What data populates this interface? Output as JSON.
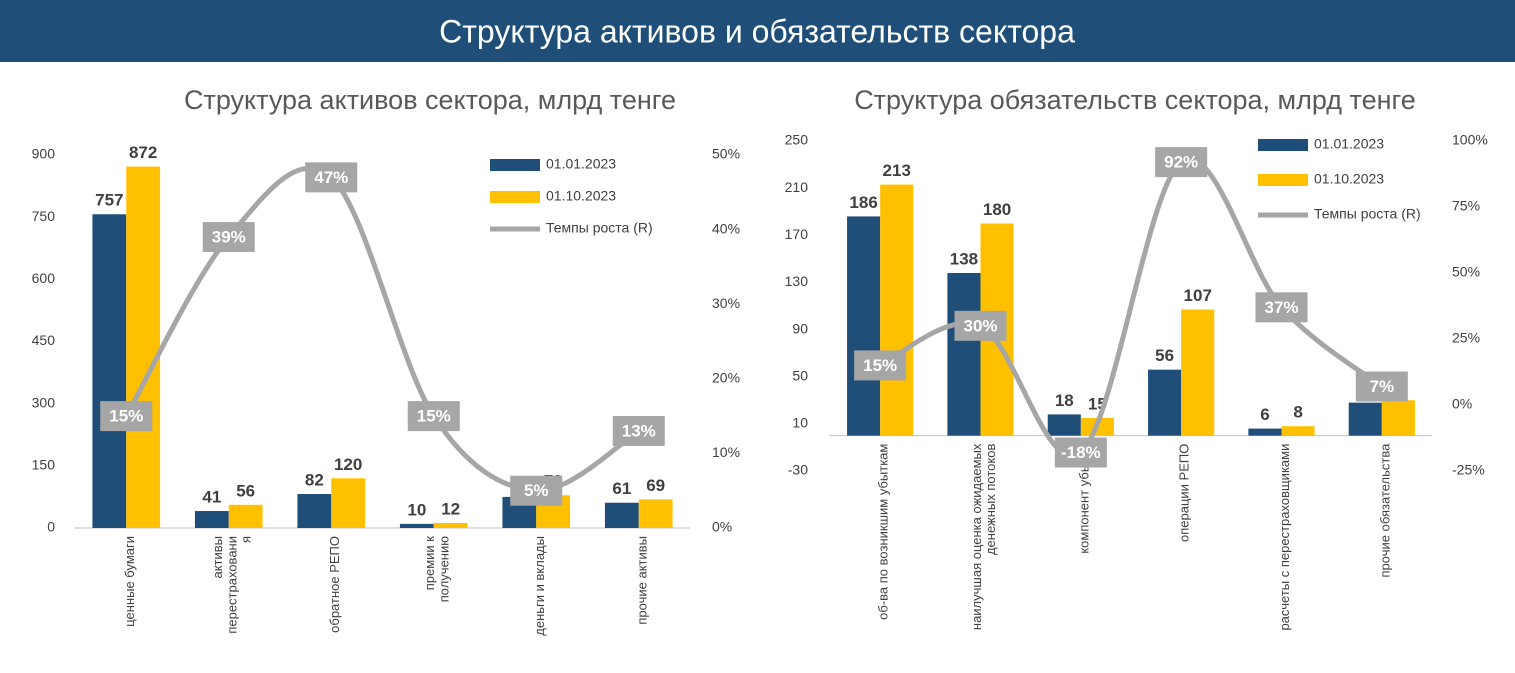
{
  "header": {
    "title": "Структура активов и обязательств сектора"
  },
  "chart_data": [
    {
      "type": "bar",
      "title": "Структура активов сектора, млрд тенге",
      "categories": [
        "ценные бумаги",
        "активы\nперестраховани\nя",
        "обратное РЕПО",
        "премии к\nполучению",
        "деньги и вклады",
        "прочие активы"
      ],
      "series": [
        {
          "name": "01.01.2023",
          "color": "#1f4e79",
          "values": [
            757,
            41,
            82,
            10,
            75,
            61
          ]
        },
        {
          "name": "01.10.2023",
          "color": "#ffc000",
          "values": [
            872,
            56,
            120,
            12,
            79,
            69
          ]
        },
        {
          "name": "Темпы роста (R)",
          "type": "line",
          "axis": "y2",
          "color": "#a6a6a6",
          "values": [
            15,
            39,
            47,
            15,
            5,
            13
          ],
          "value_labels": [
            "15%",
            "39%",
            "47%",
            "15%",
            "5%",
            "13%"
          ]
        }
      ],
      "ylim": [
        0,
        900
      ],
      "yticks": [
        0,
        150,
        300,
        450,
        600,
        750,
        900
      ],
      "y2lim": [
        0,
        50
      ],
      "y2ticks": [
        {
          "value": 0,
          "label": "0%"
        },
        {
          "value": 10,
          "label": "10%"
        },
        {
          "value": 20,
          "label": "20%"
        },
        {
          "value": 30,
          "label": "30%"
        },
        {
          "value": 40,
          "label": "40%"
        },
        {
          "value": 50,
          "label": "50%"
        }
      ],
      "legend": "upper right"
    },
    {
      "type": "bar",
      "title": "Структура обязательств сектора, млрд тенге",
      "categories": [
        "об-ва по возникшим убыткам",
        "наилучшая оценка ожидаемых\nденежных потоков",
        "компонент убытка",
        "операции РЕПО",
        "расчеты с перестраховщиками",
        "прочие обязательства"
      ],
      "series": [
        {
          "name": "01.01.2023",
          "color": "#1f4e79",
          "values": [
            186,
            138,
            18,
            56,
            6,
            28
          ]
        },
        {
          "name": "01.10.2023",
          "color": "#ffc000",
          "values": [
            213,
            180,
            15,
            107,
            8,
            30
          ]
        },
        {
          "name": "Темпы роста (R)",
          "type": "line",
          "axis": "y2",
          "color": "#a6a6a6",
          "values": [
            15,
            30,
            -18,
            92,
            37,
            7
          ],
          "value_labels": [
            "15%",
            "30%",
            "-18%",
            "92%",
            "37%",
            "7%"
          ]
        }
      ],
      "ylim": [
        -30,
        250
      ],
      "yticks": [
        -30,
        10,
        50,
        90,
        130,
        170,
        210,
        250
      ],
      "y2lim": [
        -25,
        100
      ],
      "y2ticks": [
        {
          "value": -25,
          "label": "-25%"
        },
        {
          "value": 0,
          "label": "0%"
        },
        {
          "value": 25,
          "label": "25%"
        },
        {
          "value": 50,
          "label": "50%"
        },
        {
          "value": 75,
          "label": "75%"
        },
        {
          "value": 100,
          "label": "100%"
        }
      ],
      "legend": "upper right"
    }
  ]
}
